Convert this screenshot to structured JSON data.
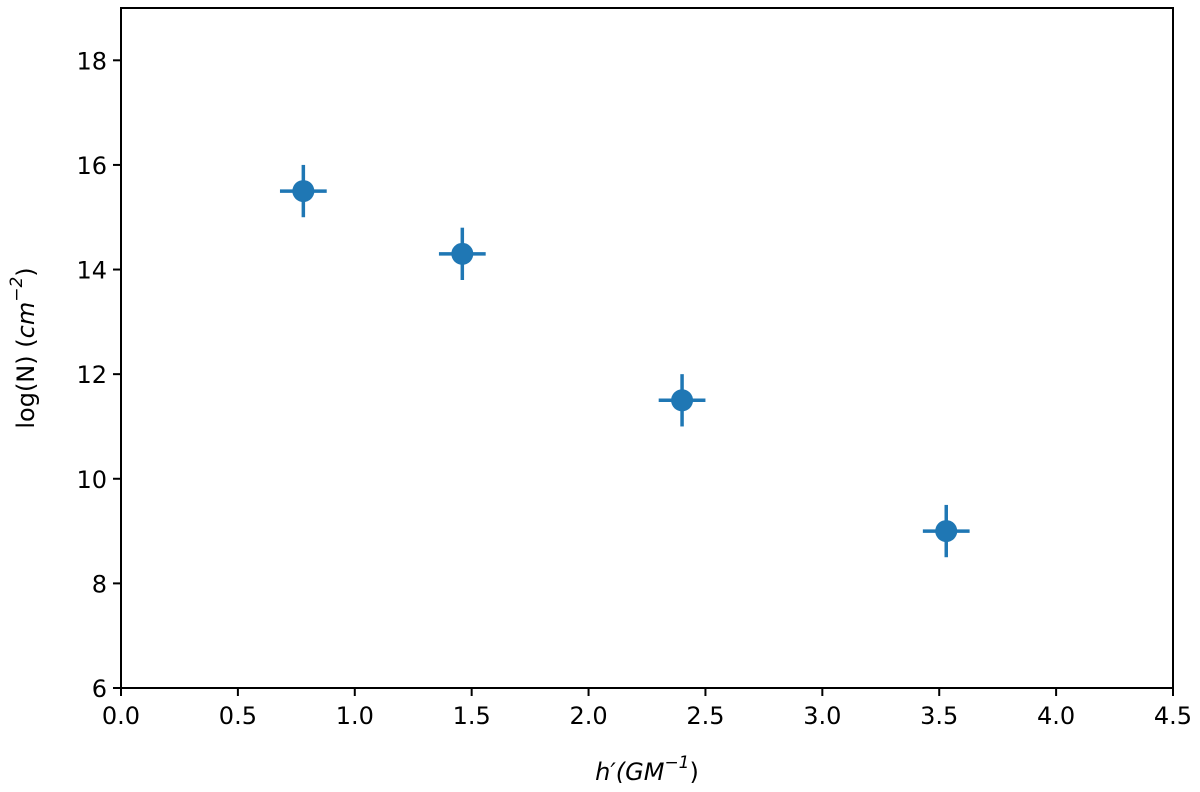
{
  "chart_data": {
    "type": "scatter",
    "xlabel": {
      "text": "h′(GM",
      "sup": "−1",
      "close": ")"
    },
    "ylabel": {
      "prefix": "log(N) (",
      "text": "cm",
      "sup": "−2",
      "close": ")"
    },
    "xlim": [
      0.0,
      4.5
    ],
    "ylim": [
      6,
      19
    ],
    "xticks": [
      0.0,
      0.5,
      1.0,
      1.5,
      2.0,
      2.5,
      3.0,
      3.5,
      4.0,
      4.5
    ],
    "xtick_labels": [
      "0.0",
      "0.5",
      "1.0",
      "1.5",
      "2.0",
      "2.5",
      "3.0",
      "3.5",
      "4.0",
      "4.5"
    ],
    "yticks": [
      6,
      8,
      10,
      12,
      14,
      16,
      18
    ],
    "ytick_labels": [
      "6",
      "8",
      "10",
      "12",
      "14",
      "16",
      "18"
    ],
    "grid": false,
    "legend": "none",
    "color": "#1f77b4",
    "points": [
      {
        "x": 0.78,
        "y": 15.5,
        "xerr": 0.1,
        "yerr": 0.5
      },
      {
        "x": 1.46,
        "y": 14.3,
        "xerr": 0.1,
        "yerr": 0.5
      },
      {
        "x": 2.4,
        "y": 11.5,
        "xerr": 0.1,
        "yerr": 0.5
      },
      {
        "x": 3.53,
        "y": 9.0,
        "xerr": 0.1,
        "yerr": 0.5
      }
    ]
  }
}
